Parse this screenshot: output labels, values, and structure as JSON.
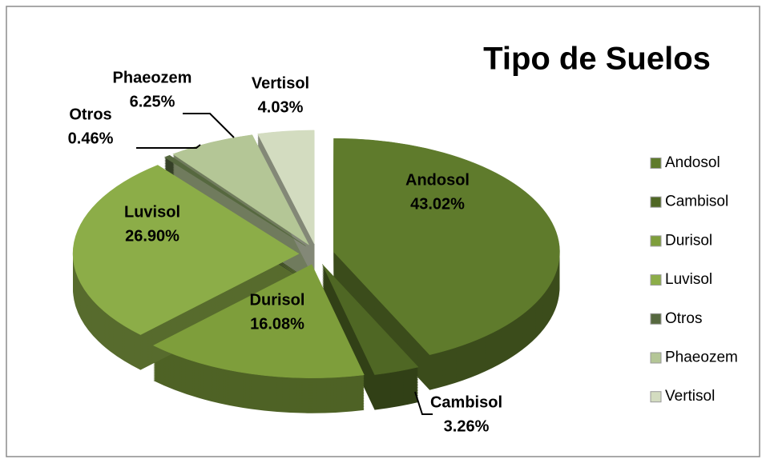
{
  "chart_data": {
    "type": "pie",
    "title": "Tipo de Suelos",
    "categories": [
      "Andosol",
      "Cambisol",
      "Durisol",
      "Luvisol",
      "Otros",
      "Phaeozem",
      "Vertisol"
    ],
    "values": [
      43.02,
      3.26,
      16.08,
      26.9,
      0.46,
      6.25,
      4.03
    ],
    "value_labels": [
      "43.02%",
      "3.26%",
      "16.08%",
      "26.90%",
      "0.46%",
      "6.25%",
      "4.03%"
    ],
    "colors": [
      "#5f7b2c",
      "#4f6724",
      "#7e9e3b",
      "#8cad48",
      "#56683f",
      "#b4c696",
      "#d3dcc0"
    ],
    "legend": "right"
  }
}
